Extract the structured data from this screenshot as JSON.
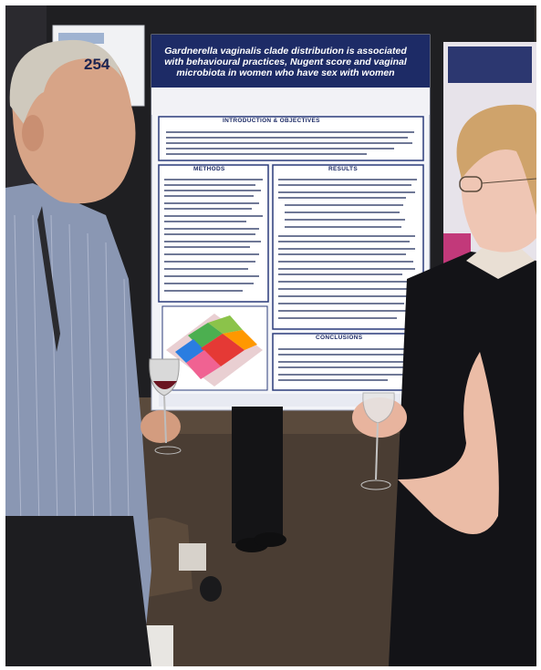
{
  "photo": {
    "description_tag": "poster-session-photo"
  },
  "badge": {
    "number": "254"
  },
  "poster": {
    "title_lines": [
      "Gardnerella vaginalis clade distribution is associated",
      "with behavioural practices, Nugent score and vaginal",
      "microbiota in women who have sex with women"
    ],
    "sections": {
      "intro": "INTRODUCTION & OBJECTIVES",
      "methods": "METHODS",
      "results": "RESULTS",
      "conclusions": "CONCLUSIONS"
    }
  },
  "colors": {
    "poster_navy": "#1d2b66",
    "board_black": "#1f1f22",
    "wall": "#2c2a2c",
    "floor": "#4a3d33"
  }
}
